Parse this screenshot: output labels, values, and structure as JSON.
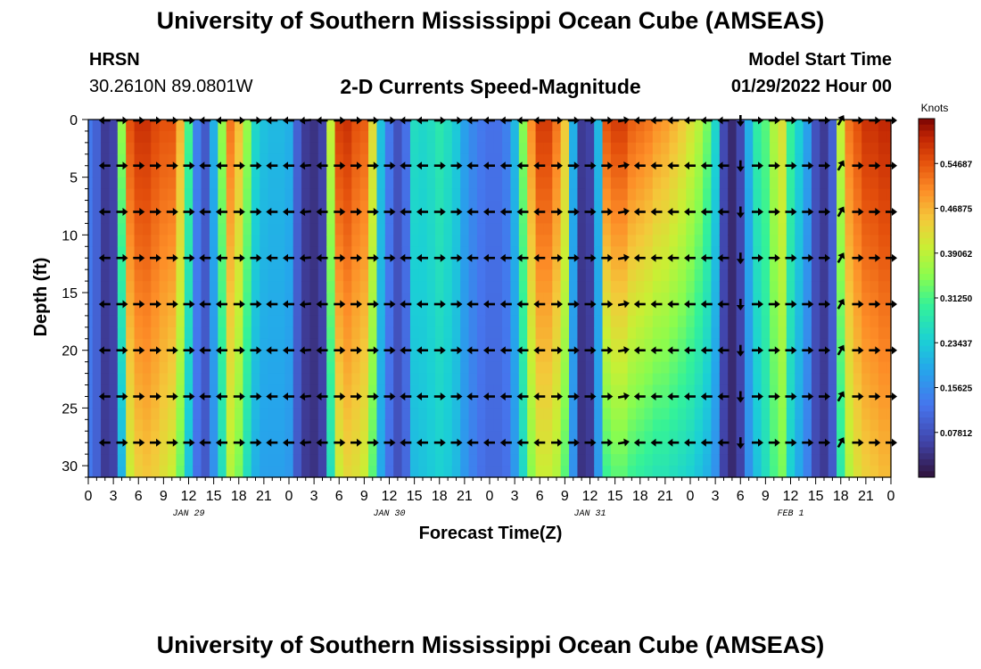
{
  "header": {
    "title": "University of Southern Mississippi Ocean Cube (AMSEAS)",
    "station": "HRSN",
    "coords": "30.2610N  89.0801W",
    "chart_title": "2-D Currents Speed-Magnitude",
    "model_start_label": "Model Start Time",
    "model_start_value": "01/29/2022 Hour 00"
  },
  "footer": {
    "repeat_title": "University of Southern Mississippi Ocean Cube (AMSEAS)"
  },
  "colors": {
    "background": "#ffffff",
    "text": "#000000",
    "arrow": "#000000"
  },
  "chart_data": {
    "type": "heatmap",
    "title": "2-D Currents Speed-Magnitude",
    "xlabel": "Forecast Time(Z)",
    "ylabel": "Depth (ft)",
    "x_ticks": [
      "0",
      "3",
      "6",
      "9",
      "12",
      "15",
      "18",
      "21",
      "0",
      "3",
      "6",
      "9",
      "12",
      "15",
      "18",
      "21",
      "0",
      "3",
      "6",
      "9",
      "12",
      "15",
      "18",
      "21",
      "0",
      "3",
      "6",
      "9",
      "12",
      "15",
      "18",
      "21",
      "0"
    ],
    "date_labels": [
      {
        "label": "JAN 29",
        "hour": 12
      },
      {
        "label": "JAN 30",
        "hour": 36
      },
      {
        "label": "JAN 31",
        "hour": 60
      },
      {
        "label": "FEB 1",
        "hour": 84
      }
    ],
    "xlim_hours": [
      0,
      96
    ],
    "ylim_ft": [
      0,
      31
    ],
    "y_ticks": [
      0,
      5,
      10,
      15,
      20,
      25,
      30
    ],
    "colorbar": {
      "unit": "Knots",
      "min": 0,
      "max": 0.625,
      "labels": [
        "0.54687",
        "0.46875",
        "0.39062",
        "0.31250",
        "0.23437",
        "0.15625",
        "0.07812"
      ]
    },
    "speed_profile": {
      "hours": [
        0,
        1,
        2,
        3,
        4,
        5,
        6,
        7,
        8,
        9,
        10,
        11,
        12,
        13,
        14,
        15,
        16,
        17,
        18,
        19,
        20,
        21,
        22,
        23,
        24,
        25,
        26,
        27,
        28,
        29,
        30,
        31,
        32,
        33,
        34,
        35,
        36,
        37,
        38,
        39,
        40,
        41,
        42,
        43,
        44,
        45,
        46,
        47,
        48,
        49,
        50,
        51,
        52,
        53,
        54,
        55,
        56,
        57,
        58,
        59,
        60,
        61,
        62,
        63,
        64,
        65,
        66,
        67,
        68,
        69,
        70,
        71,
        72,
        73,
        74,
        75,
        76,
        77,
        78,
        79,
        80,
        81,
        82,
        83,
        84,
        85,
        86,
        87,
        88,
        89,
        90,
        91,
        92,
        93,
        94,
        95,
        96
      ],
      "surface_knots": [
        0.13,
        0.1,
        0.05,
        0.06,
        0.36,
        0.55,
        0.58,
        0.58,
        0.56,
        0.55,
        0.55,
        0.47,
        0.31,
        0.14,
        0.09,
        0.2,
        0.36,
        0.52,
        0.46,
        0.36,
        0.25,
        0.22,
        0.21,
        0.21,
        0.2,
        0.1,
        0.05,
        0.04,
        0.06,
        0.4,
        0.57,
        0.58,
        0.55,
        0.54,
        0.43,
        0.22,
        0.13,
        0.08,
        0.12,
        0.26,
        0.25,
        0.26,
        0.28,
        0.26,
        0.23,
        0.18,
        0.15,
        0.13,
        0.12,
        0.12,
        0.14,
        0.21,
        0.35,
        0.5,
        0.57,
        0.57,
        0.52,
        0.45,
        0.2,
        0.05,
        0.06,
        0.21,
        0.55,
        0.57,
        0.57,
        0.54,
        0.53,
        0.52,
        0.5,
        0.49,
        0.47,
        0.45,
        0.42,
        0.39,
        0.34,
        0.25,
        0.07,
        0.03,
        0.07,
        0.2,
        0.29,
        0.32,
        0.38,
        0.42,
        0.3,
        0.24,
        0.18,
        0.08,
        0.05,
        0.1,
        0.4,
        0.52,
        0.55,
        0.58,
        0.58,
        0.59,
        0.59
      ],
      "bottom_knots": [
        0.13,
        0.1,
        0.05,
        0.06,
        0.2,
        0.4,
        0.44,
        0.45,
        0.44,
        0.42,
        0.4,
        0.33,
        0.22,
        0.12,
        0.09,
        0.16,
        0.26,
        0.38,
        0.34,
        0.26,
        0.2,
        0.18,
        0.18,
        0.18,
        0.17,
        0.09,
        0.05,
        0.04,
        0.06,
        0.26,
        0.4,
        0.43,
        0.42,
        0.4,
        0.32,
        0.19,
        0.12,
        0.08,
        0.11,
        0.21,
        0.22,
        0.23,
        0.24,
        0.23,
        0.21,
        0.17,
        0.14,
        0.12,
        0.11,
        0.11,
        0.12,
        0.17,
        0.25,
        0.35,
        0.4,
        0.4,
        0.38,
        0.32,
        0.16,
        0.04,
        0.05,
        0.17,
        0.3,
        0.32,
        0.32,
        0.3,
        0.29,
        0.28,
        0.27,
        0.27,
        0.26,
        0.25,
        0.24,
        0.22,
        0.2,
        0.16,
        0.06,
        0.03,
        0.06,
        0.16,
        0.22,
        0.26,
        0.31,
        0.34,
        0.24,
        0.19,
        0.14,
        0.07,
        0.05,
        0.09,
        0.28,
        0.38,
        0.42,
        0.44,
        0.45,
        0.46,
        0.46
      ]
    },
    "vector_depths_ft": [
      0,
      4,
      8,
      12,
      16,
      20,
      24,
      28
    ],
    "vector_hours": [
      2,
      4,
      6,
      8,
      10,
      12,
      14,
      16,
      18,
      20,
      22,
      24,
      26,
      28,
      30,
      32,
      34,
      36,
      38,
      40,
      42,
      44,
      46,
      48,
      50,
      52,
      54,
      56,
      58,
      60,
      62,
      64,
      66,
      68,
      70,
      72,
      74,
      76,
      78,
      80,
      82,
      84,
      86,
      88,
      90,
      92,
      94,
      96
    ],
    "vector_direction_deg": [
      180,
      0,
      0,
      0,
      0,
      0,
      180,
      180,
      0,
      0,
      180,
      180,
      185,
      180,
      0,
      0,
      0,
      0,
      180,
      180,
      0,
      0,
      180,
      180,
      180,
      180,
      180,
      0,
      0,
      0,
      0,
      10,
      180,
      180,
      180,
      180,
      180,
      180,
      270,
      0,
      0,
      0,
      0,
      0,
      60,
      0,
      0,
      0
    ]
  }
}
